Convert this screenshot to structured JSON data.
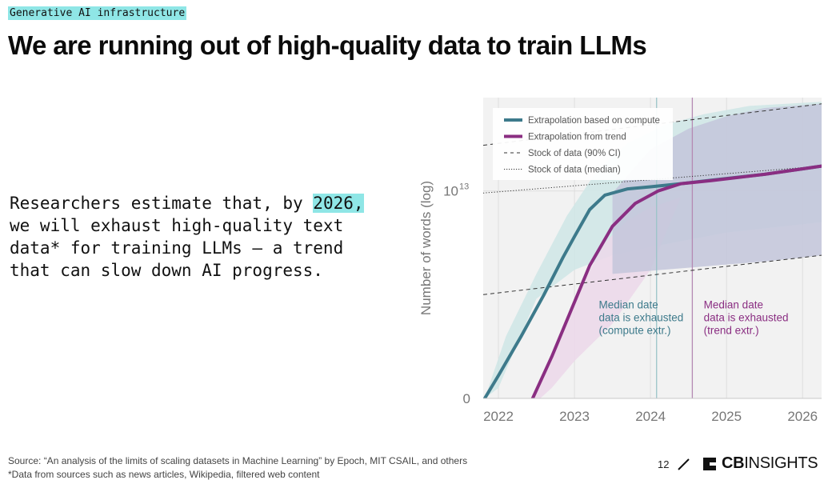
{
  "header": {
    "tag": "Generative AI infrastructure",
    "title": "We are running out of high-quality data to train LLMs"
  },
  "body": {
    "before": "Researchers estimate that, by ",
    "highlight": "2026,",
    "after": " we will exhaust high-quality text data* for training LLMs – a trend that can slow down AI progress."
  },
  "chart_data": {
    "type": "line",
    "title": "",
    "xlabel": "",
    "ylabel": "Number of words (log)",
    "yscale": "log",
    "xlim": [
      2021.8,
      2026.25
    ],
    "ylim": [
      0,
      1.45
    ],
    "x_ticks": [
      "2022",
      "2023",
      "2024",
      "2025",
      "2026"
    ],
    "y_ticks": [
      {
        "value": 0,
        "base": "0",
        "exp": ""
      },
      {
        "value": 1,
        "base": "10",
        "exp": "13"
      }
    ],
    "grid": true,
    "legend_position": "top-left",
    "legend": [
      {
        "label": "Extrapolation based on compute",
        "style": "solid-thick",
        "color": "#3d7a8b"
      },
      {
        "label": "Extrapolation from trend",
        "style": "solid-thick",
        "color": "#8a2e82"
      },
      {
        "label": "Stock of data (90% CI)",
        "style": "dashed",
        "color": "#333333"
      },
      {
        "label": "Stock of data (median)",
        "style": "dotted",
        "color": "#333333"
      }
    ],
    "series": [
      {
        "name": "Extrapolation based on compute",
        "color": "#3d7a8b",
        "points": [
          [
            2021.82,
            0
          ],
          [
            2022.0,
            0.11
          ],
          [
            2022.3,
            0.3
          ],
          [
            2022.6,
            0.5
          ],
          [
            2022.85,
            0.68
          ],
          [
            2023.0,
            0.78
          ],
          [
            2023.2,
            0.91
          ],
          [
            2023.4,
            0.98
          ],
          [
            2023.7,
            1.01
          ],
          [
            2024.0,
            1.02
          ],
          [
            2024.4,
            1.035
          ],
          [
            2025.0,
            1.06
          ],
          [
            2025.5,
            1.08
          ],
          [
            2026.25,
            1.12
          ]
        ]
      },
      {
        "name": "Extrapolation from trend",
        "color": "#8a2e82",
        "points": [
          [
            2022.45,
            0
          ],
          [
            2022.7,
            0.2
          ],
          [
            2022.95,
            0.42
          ],
          [
            2023.2,
            0.64
          ],
          [
            2023.5,
            0.83
          ],
          [
            2023.8,
            0.94
          ],
          [
            2024.1,
            1.0
          ],
          [
            2024.4,
            1.035
          ],
          [
            2024.8,
            1.05
          ],
          [
            2025.5,
            1.08
          ],
          [
            2026.25,
            1.12
          ]
        ]
      },
      {
        "name": "Stock of data (median)",
        "color": "#333333",
        "style": "dotted",
        "points": [
          [
            2021.8,
            0.99
          ],
          [
            2026.25,
            1.12
          ]
        ]
      },
      {
        "name": "Stock of data (90% CI) upper",
        "color": "#333333",
        "style": "dashed",
        "points": [
          [
            2021.8,
            1.22
          ],
          [
            2026.25,
            1.42
          ]
        ]
      },
      {
        "name": "Stock of data (90% CI) lower",
        "color": "#333333",
        "style": "dashed",
        "points": [
          [
            2021.8,
            0.5
          ],
          [
            2026.25,
            0.69
          ]
        ]
      }
    ],
    "bands": [
      {
        "name": "compute-ci",
        "color": "#cfe6e6",
        "upper": [
          [
            2021.82,
            0
          ],
          [
            2022.1,
            0.3
          ],
          [
            2022.5,
            0.6
          ],
          [
            2022.9,
            0.88
          ],
          [
            2023.3,
            1.1
          ],
          [
            2023.7,
            1.23
          ],
          [
            2024.2,
            1.32
          ],
          [
            2024.7,
            1.37
          ],
          [
            2025.3,
            1.41
          ],
          [
            2026.25,
            1.43
          ]
        ],
        "lower": [
          [
            2026.25,
            0.85
          ],
          [
            2025.0,
            0.8
          ],
          [
            2024.0,
            0.73
          ],
          [
            2023.5,
            0.69
          ],
          [
            2023.0,
            0.62
          ],
          [
            2022.5,
            0.48
          ],
          [
            2022.0,
            0.05
          ],
          [
            2021.82,
            0
          ]
        ]
      },
      {
        "name": "trend-ci",
        "color": "#ecd8ea",
        "upper": [
          [
            2022.45,
            0
          ],
          [
            2022.8,
            0.3
          ],
          [
            2023.1,
            0.55
          ],
          [
            2023.4,
            0.75
          ],
          [
            2023.7,
            0.86
          ],
          [
            2024.0,
            0.92
          ],
          [
            2024.4,
            0.97
          ]
        ],
        "lower": [
          [
            2024.4,
            0.97
          ],
          [
            2024.0,
            0.62
          ],
          [
            2023.5,
            0.36
          ],
          [
            2023.0,
            0.18
          ],
          [
            2022.7,
            0.05
          ],
          [
            2022.55,
            0
          ]
        ]
      },
      {
        "name": "stock-ci",
        "color": "#c3c5db",
        "upper": [
          [
            2023.5,
            0.99
          ],
          [
            2024.0,
            1.2
          ],
          [
            2024.5,
            1.3
          ],
          [
            2025.0,
            1.36
          ],
          [
            2025.5,
            1.4
          ],
          [
            2026.25,
            1.42
          ]
        ],
        "lower": [
          [
            2026.25,
            0.69
          ],
          [
            2025.5,
            0.66
          ],
          [
            2024.5,
            0.63
          ],
          [
            2023.5,
            0.6
          ]
        ]
      }
    ],
    "markers": [
      {
        "x": 2024.08,
        "color": "#9bc4c9"
      },
      {
        "x": 2024.55,
        "color": "#b58ab3"
      }
    ],
    "annotations": [
      {
        "text": "Median date\ndata is exhausted\n(compute extr.)",
        "color": "#3d7a8b",
        "x": 2023.32,
        "y": 0.45
      },
      {
        "text": "Median date\ndata is exhausted\n(trend extr.)",
        "color": "#8a2e82",
        "x": 2024.7,
        "y": 0.45
      }
    ]
  },
  "footer": {
    "source": "Source: “An analysis of the limits of scaling datasets in Machine Learning” by Epoch, MIT CSAIL, and others",
    "note": "*Data from sources such as news articles, Wikipedia, filtered web content",
    "page_number": "12",
    "brand_bold": "CB",
    "brand_rest": "INSIGHTS"
  }
}
